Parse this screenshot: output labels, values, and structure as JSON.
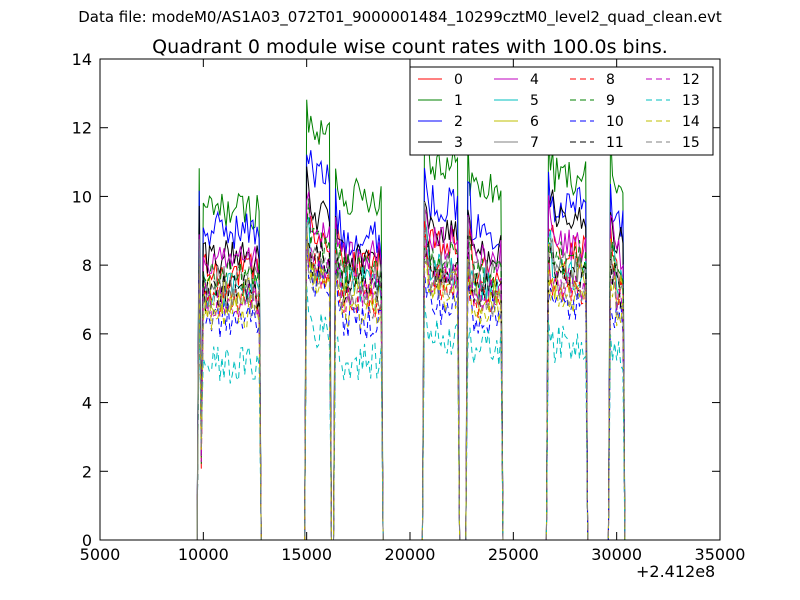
{
  "figure": {
    "suptitle": "Data file: modeM0/AS1A03_072T01_9000001484_10299cztM0_level2_quad_clean.evt",
    "x_offset_label": "+2.412e8"
  },
  "chart_data": {
    "type": "line",
    "title": "Quadrant 0 module wise count rates with 100.0s bins.",
    "xlabel": "",
    "ylabel": "",
    "xlim": [
      5000,
      35000
    ],
    "ylim": [
      0,
      14
    ],
    "xticks": [
      "5000",
      "10000",
      "15000",
      "20000",
      "25000",
      "30000",
      "35000"
    ],
    "yticks": [
      "0",
      "2",
      "4",
      "6",
      "8",
      "10",
      "12",
      "14"
    ],
    "x_offset": "+2.412e8",
    "grid": false,
    "legend": {
      "position": "top-right",
      "columns": 4
    },
    "segments": [
      [
        9800,
        12700
      ],
      [
        15000,
        16100
      ],
      [
        16400,
        18600
      ],
      [
        20700,
        22300
      ],
      [
        22800,
        24400
      ],
      [
        26700,
        28500
      ],
      [
        29700,
        30300
      ]
    ],
    "series": [
      {
        "name": "0",
        "color": "#ff0000",
        "dashed": false,
        "segment_levels": [
          7.8,
          8.8,
          8.0,
          8.5,
          7.8,
          8.3,
          7.8
        ]
      },
      {
        "name": "1",
        "color": "#008000",
        "dashed": false,
        "segment_levels": [
          9.6,
          11.8,
          10.0,
          11.0,
          10.2,
          10.6,
          10.4
        ]
      },
      {
        "name": "2",
        "color": "#0000ff",
        "dashed": false,
        "segment_levels": [
          9.0,
          10.6,
          8.8,
          9.8,
          9.0,
          9.8,
          9.2
        ]
      },
      {
        "name": "3",
        "color": "#000000",
        "dashed": false,
        "segment_levels": [
          8.3,
          9.4,
          8.2,
          9.0,
          8.4,
          9.2,
          8.7
        ]
      },
      {
        "name": "4",
        "color": "#bf00bf",
        "dashed": false,
        "segment_levels": [
          8.0,
          8.8,
          8.2,
          8.7,
          8.2,
          8.6,
          8.2
        ]
      },
      {
        "name": "5",
        "color": "#00bfbf",
        "dashed": false,
        "segment_levels": [
          7.3,
          8.0,
          7.4,
          7.8,
          7.4,
          7.8,
          7.4
        ]
      },
      {
        "name": "6",
        "color": "#bfbf00",
        "dashed": false,
        "segment_levels": [
          7.1,
          7.8,
          7.2,
          7.6,
          7.1,
          7.5,
          7.2
        ]
      },
      {
        "name": "7",
        "color": "#808080",
        "dashed": false,
        "segment_levels": [
          7.5,
          8.2,
          7.6,
          8.0,
          7.6,
          8.0,
          7.6
        ]
      },
      {
        "name": "8",
        "color": "#ff0000",
        "dashed": true,
        "segment_levels": [
          7.0,
          7.8,
          7.0,
          7.5,
          7.0,
          7.4,
          7.0
        ]
      },
      {
        "name": "9",
        "color": "#008000",
        "dashed": true,
        "segment_levels": [
          7.6,
          8.6,
          7.8,
          8.2,
          7.8,
          8.2,
          7.8
        ]
      },
      {
        "name": "10",
        "color": "#0000ff",
        "dashed": true,
        "segment_levels": [
          6.4,
          7.6,
          6.4,
          6.8,
          6.5,
          6.8,
          6.4
        ]
      },
      {
        "name": "11",
        "color": "#000000",
        "dashed": true,
        "segment_levels": [
          7.2,
          8.2,
          7.4,
          7.8,
          7.3,
          7.6,
          7.2
        ]
      },
      {
        "name": "12",
        "color": "#bf00bf",
        "dashed": true,
        "segment_levels": [
          7.0,
          7.8,
          7.2,
          7.6,
          7.1,
          7.4,
          7.0
        ]
      },
      {
        "name": "13",
        "color": "#00bfbf",
        "dashed": true,
        "segment_levels": [
          5.1,
          6.1,
          5.2,
          5.9,
          5.6,
          5.7,
          5.4
        ]
      },
      {
        "name": "14",
        "color": "#bfbf00",
        "dashed": true,
        "segment_levels": [
          6.6,
          7.5,
          6.7,
          7.2,
          6.8,
          7.0,
          6.7
        ]
      },
      {
        "name": "15",
        "color": "#808080",
        "dashed": true,
        "segment_levels": [
          6.9,
          7.7,
          7.0,
          7.4,
          7.0,
          7.3,
          7.0
        ]
      }
    ]
  }
}
